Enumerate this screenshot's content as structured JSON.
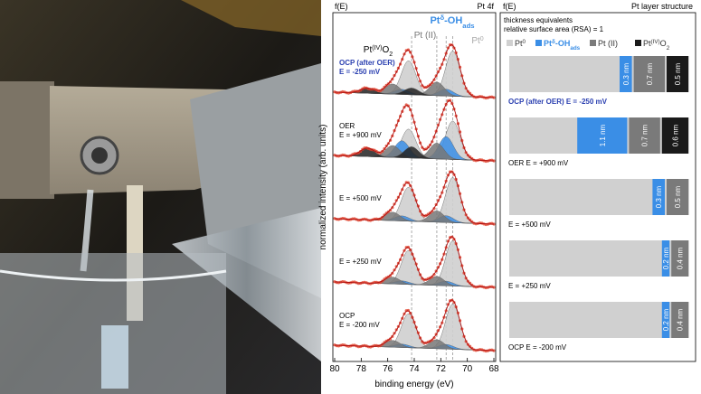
{
  "spectra": {
    "panel_label": "f(E)",
    "title": "Pt 4f",
    "xlabel": "binding energy (eV)",
    "ylabel": "normalized intensity (arb. units)",
    "xlim": [
      80,
      68
    ],
    "xticks": [
      80,
      78,
      76,
      74,
      72,
      70,
      68
    ],
    "references": [
      {
        "position": 74.2,
        "color": "#000000",
        "parts": [
          {
            "text": "Pt",
            "style": "normal"
          },
          {
            "text": "(IV)",
            "style": "sup"
          },
          {
            "text": "O",
            "style": "normal"
          },
          {
            "text": "2",
            "style": "sub"
          }
        ]
      },
      {
        "position": 72.3,
        "color": "#777777",
        "parts": [
          {
            "text": "Pt (II)",
            "style": "normal"
          }
        ]
      },
      {
        "position": 71.6,
        "color": "#3a8ee6",
        "parts": [
          {
            "text": "Pt",
            "style": "normal"
          },
          {
            "text": "δ",
            "style": "sup"
          },
          {
            "text": "-OH",
            "style": "normal"
          },
          {
            "text": "ads",
            "style": "sub"
          }
        ]
      },
      {
        "position": 71.1,
        "color": "#aaaaaa",
        "parts": [
          {
            "text": "Pt",
            "style": "normal"
          },
          {
            "text": "0",
            "style": "sup"
          }
        ]
      }
    ],
    "conditions": [
      {
        "lines": [
          "OCP (after OER)",
          "E = -250 mV"
        ],
        "color": "#2a3fb0",
        "intensities": [
          1,
          0.15,
          0.3,
          0.15
        ]
      },
      {
        "lines": [
          "OER",
          "E = +900 mV"
        ],
        "color": "#000000",
        "intensities": [
          0.85,
          0.5,
          0.35,
          0.25
        ]
      },
      {
        "lines": [
          "E = +500 mV"
        ],
        "color": "#000000",
        "intensities": [
          1,
          0.15,
          0.25,
          0
        ]
      },
      {
        "lines": [
          "E = +250 mV"
        ],
        "color": "#000000",
        "intensities": [
          1,
          0.1,
          0.2,
          0
        ]
      },
      {
        "lines": [
          "OCP",
          "E = -200 mV"
        ],
        "color": "#000000",
        "intensities": [
          1,
          0.1,
          0.2,
          0
        ]
      }
    ]
  },
  "layers": {
    "panel_label": "f(E)",
    "title": "Pt layer structure",
    "notes": [
      "thickness equivalents",
      "relative surface area (RSA) = 1"
    ],
    "legend": [
      {
        "color": "#d0d0d0",
        "parts": [
          {
            "text": "Pt",
            "style": "normal"
          },
          {
            "text": "0",
            "style": "sup"
          }
        ]
      },
      {
        "color": "#3a8ee6",
        "parts": [
          {
            "text": "Pt",
            "style": "normal"
          },
          {
            "text": "δ",
            "style": "sup"
          },
          {
            "text": "-OH",
            "style": "normal"
          },
          {
            "text": "ads",
            "style": "sub"
          }
        ]
      },
      {
        "color": "#7a7a7a",
        "parts": [
          {
            "text": "Pt (II)",
            "style": "normal"
          }
        ]
      },
      {
        "color": "#1a1a1a",
        "parts": [
          {
            "text": "Pt",
            "style": "normal"
          },
          {
            "text": "(IV)",
            "style": "sup"
          },
          {
            "text": "O",
            "style": "normal"
          },
          {
            "text": "2",
            "style": "sub"
          }
        ]
      }
    ],
    "rows": [
      {
        "label": "OCP (after OER) E = -250 mV",
        "color": "#2a3fb0",
        "segments": [
          {
            "value": 0.3,
            "label": "0.3 nm",
            "color": "#3a8ee6"
          },
          {
            "value": 0.7,
            "label": "0.7 nm",
            "color": "#7a7a7a"
          },
          {
            "value": 0.5,
            "label": "0.5 nm",
            "color": "#1a1a1a"
          }
        ]
      },
      {
        "label": "OER E = +900 mV",
        "color": "#000000",
        "segments": [
          {
            "value": 1.1,
            "label": "1.1 nm",
            "color": "#3a8ee6"
          },
          {
            "value": 0.7,
            "label": "0.7 nm",
            "color": "#7a7a7a"
          },
          {
            "value": 0.6,
            "label": "0.6 nm",
            "color": "#1a1a1a"
          }
        ]
      },
      {
        "label": "E = +500 mV",
        "color": "#000000",
        "segments": [
          {
            "value": 0.3,
            "label": "0.3 nm",
            "color": "#3a8ee6"
          },
          {
            "value": 0.5,
            "label": "0.5 nm",
            "color": "#7a7a7a"
          }
        ]
      },
      {
        "label": "E = +250 mV",
        "color": "#000000",
        "segments": [
          {
            "value": 0.2,
            "label": "0.2 nm",
            "color": "#3a8ee6"
          },
          {
            "value": 0.4,
            "label": "0.4 nm",
            "color": "#7a7a7a"
          }
        ]
      },
      {
        "label": "OCP E = -200 mV",
        "color": "#000000",
        "segments": [
          {
            "value": 0.2,
            "label": "0.2 nm",
            "color": "#3a8ee6"
          },
          {
            "value": 0.4,
            "label": "0.4 nm",
            "color": "#7a7a7a"
          }
        ]
      }
    ]
  }
}
